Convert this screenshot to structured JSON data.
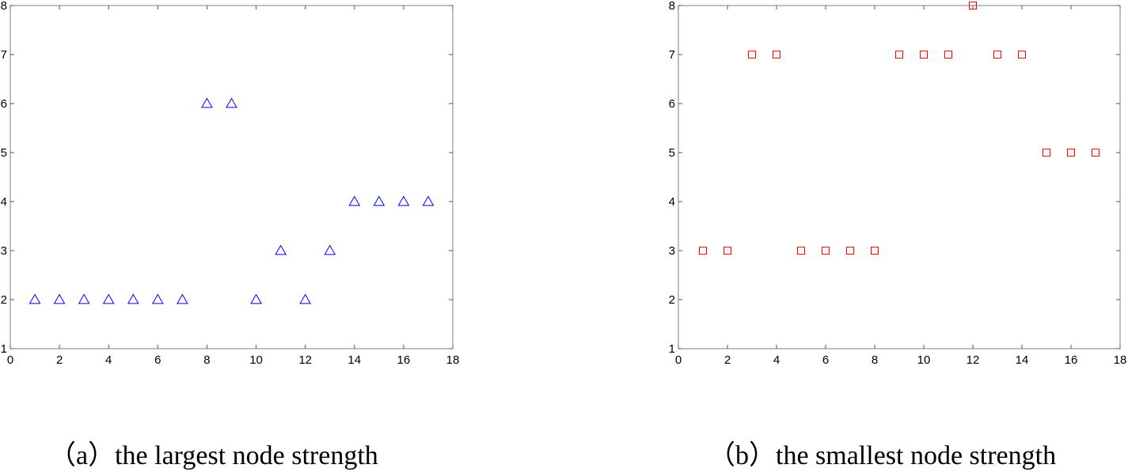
{
  "panels": [
    {
      "caption": "（a）the largest node strength",
      "chart_data": {
        "type": "scatter",
        "marker": "triangle",
        "marker_color": "#0000ff",
        "xlim": [
          0,
          18
        ],
        "ylim": [
          1,
          8
        ],
        "xticks": [
          0,
          2,
          4,
          6,
          8,
          10,
          12,
          14,
          16,
          18
        ],
        "yticks": [
          1,
          2,
          3,
          4,
          5,
          6,
          7,
          8
        ],
        "grid": false,
        "title": "",
        "xlabel": "",
        "ylabel": "",
        "x": [
          1,
          2,
          3,
          4,
          5,
          6,
          7,
          8,
          9,
          10,
          11,
          12,
          13,
          14,
          15,
          16,
          17
        ],
        "y": [
          2,
          2,
          2,
          2,
          2,
          2,
          2,
          6,
          6,
          2,
          3,
          2,
          3,
          4,
          4,
          4,
          4
        ]
      }
    },
    {
      "caption": "（b）the smallest node strength",
      "chart_data": {
        "type": "scatter",
        "marker": "square",
        "marker_color": "#ff0000",
        "xlim": [
          0,
          18
        ],
        "ylim": [
          1,
          8
        ],
        "xticks": [
          0,
          2,
          4,
          6,
          8,
          10,
          12,
          14,
          16,
          18
        ],
        "yticks": [
          1,
          2,
          3,
          4,
          5,
          6,
          7,
          8
        ],
        "grid": false,
        "title": "",
        "xlabel": "",
        "ylabel": "",
        "x": [
          1,
          2,
          3,
          4,
          5,
          6,
          7,
          8,
          9,
          10,
          11,
          12,
          13,
          14,
          15,
          16,
          17
        ],
        "y": [
          3,
          3,
          7,
          7,
          3,
          3,
          3,
          3,
          7,
          7,
          7,
          8,
          7,
          7,
          5,
          5,
          5
        ]
      }
    }
  ]
}
